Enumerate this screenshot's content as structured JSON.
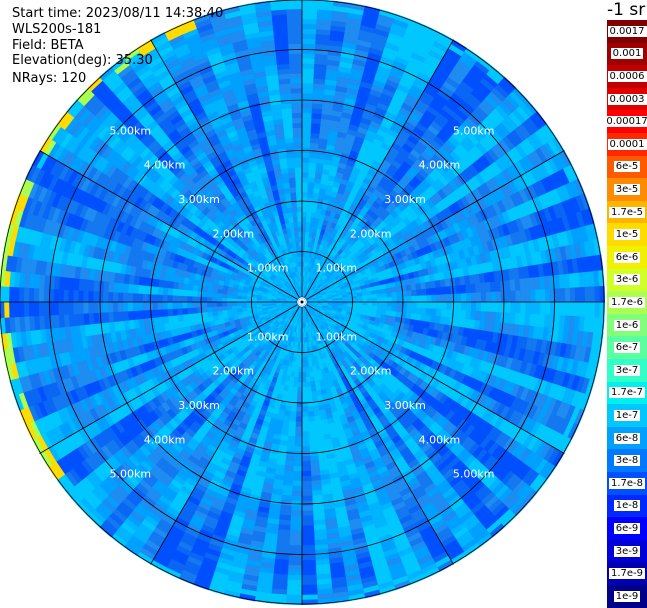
{
  "header": {
    "start_time": "Start time: 2023/08/11 14:38:40",
    "instrument": "WLS200s-181",
    "field": "Field: BETA",
    "elevation": "Elevation(deg): 35.30",
    "nrays": "NRays: 120"
  },
  "chart_data": {
    "type": "heatmap",
    "projection": "polar (PPI)",
    "field": "BETA",
    "elevation_deg": 35.3,
    "n_rays": 120,
    "range_rings_km": [
      1.0,
      2.0,
      3.0,
      4.0,
      5.0
    ],
    "range_ring_labels": [
      "1.00km",
      "2.00km",
      "3.00km",
      "4.00km",
      "5.00km"
    ],
    "spoke_angles_deg": [
      0,
      30,
      60,
      90,
      120,
      150,
      180,
      210,
      240,
      270,
      300,
      330
    ],
    "max_range_km": 6.0,
    "grid": true,
    "dominant_value_range": [
      "1e-8",
      "3e-8"
    ],
    "colorbar": {
      "unit_label": "-1 sr",
      "tick_labels": [
        "0.0017",
        "0.001",
        "0.0006",
        "0.0003",
        "0.00017",
        "0.0001",
        "6e-5",
        "3e-5",
        "1.7e-5",
        "1e-5",
        "6e-6",
        "3e-6",
        "1.7e-6",
        "1e-6",
        "6e-7",
        "3e-7",
        "1.7e-7",
        "1e-7",
        "6e-8",
        "3e-8",
        "1.7e-8",
        "1e-8",
        "6e-9",
        "3e-9",
        "1.7e-9",
        "1e-9"
      ],
      "colors": [
        "#800000",
        "#a00000",
        "#c00000",
        "#e00000",
        "#ff0000",
        "#ff2800",
        "#ff5a00",
        "#ff8c00",
        "#ffb400",
        "#ffdc00",
        "#f0f000",
        "#d2ff28",
        "#aaff50",
        "#82ff7a",
        "#5affa0",
        "#32ffc8",
        "#00f0f0",
        "#00c8ff",
        "#00a0ff",
        "#0078ff",
        "#0050ff",
        "#0028ff",
        "#0000ff",
        "#0000d8",
        "#0000b0",
        "#000088"
      ]
    }
  }
}
